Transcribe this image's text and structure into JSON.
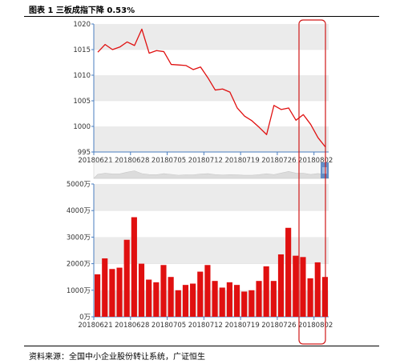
{
  "header": {
    "title": "图表 1  三板成指下降 0.53%"
  },
  "footer": {
    "source": "资料来源：全国中小企业股份转让系统，广证恒生"
  },
  "colors": {
    "line": "#e01010",
    "bar": "#e01010",
    "band": "#ebebeb",
    "axis": "#4a7dbf",
    "highlight": "#d01818",
    "navigator_fill": "#dcdcdc",
    "navigator_handle": "#4a7dbf"
  },
  "chart_data": [
    {
      "type": "line",
      "title": "",
      "ylim": [
        995,
        1020
      ],
      "yticks": [
        "1020",
        "1015",
        "1010",
        "1005",
        "1000",
        "995"
      ],
      "xticks": [
        "20180621",
        "20180628",
        "20180705",
        "20180712",
        "20180719",
        "20180726",
        "20180802"
      ],
      "grid": "alternating-bands",
      "values": [
        1014.5,
        1016.0,
        1015.0,
        1015.5,
        1016.5,
        1015.8,
        1019.0,
        1014.3,
        1014.8,
        1014.6,
        1012.1,
        1012.0,
        1011.9,
        1011.1,
        1011.6,
        1009.5,
        1007.1,
        1007.3,
        1006.7,
        1003.6,
        1002.0,
        1001.1,
        999.8,
        998.4,
        1004.1,
        1003.3,
        1003.6,
        1001.2,
        1002.3,
        1000.4,
        997.8,
        996.0
      ]
    },
    {
      "type": "bar",
      "title": "",
      "ylim": [
        0,
        5000
      ],
      "yticks": [
        "5000万",
        "4000万",
        "3000万",
        "2000万",
        "1000万",
        "0万"
      ],
      "xticks": [
        "20180621",
        "20180628",
        "20180705",
        "20180712",
        "20180719",
        "20180726",
        "20180802"
      ],
      "grid": "alternating-bands",
      "values": [
        1600,
        2200,
        1800,
        1850,
        2900,
        3750,
        2000,
        1400,
        1300,
        1950,
        1500,
        1000,
        1200,
        1250,
        1700,
        1950,
        1350,
        1100,
        1300,
        1200,
        950,
        1000,
        1350,
        1900,
        1350,
        2350,
        3350,
        2300,
        2250,
        1450,
        2050,
        1500
      ]
    }
  ]
}
